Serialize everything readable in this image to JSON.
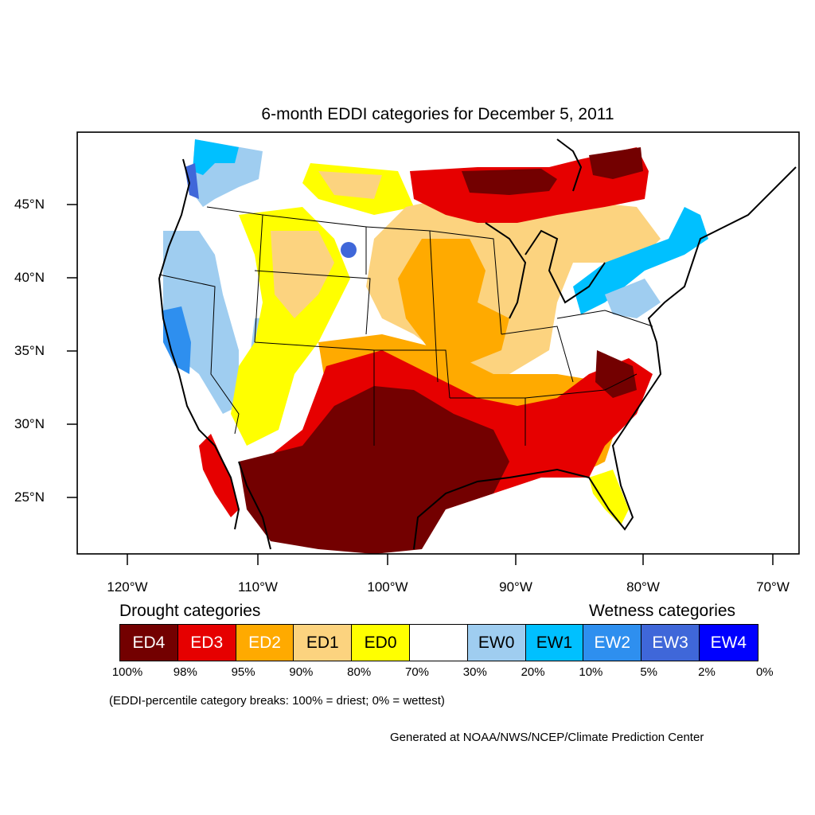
{
  "title": "6-month EDDI categories for December 5, 2011",
  "latitude_labels": [
    "45°N",
    "40°N",
    "35°N",
    "30°N",
    "25°N"
  ],
  "longitude_labels": [
    "120°W",
    "110°W",
    "100°W",
    "90°W",
    "80°W",
    "70°W"
  ],
  "drought_heading": "Drought categories",
  "wetness_heading": "Wetness categories",
  "legend": [
    {
      "label": "ED4",
      "color": "#730000",
      "text_color": "#ffffff"
    },
    {
      "label": "ED3",
      "color": "#e60000",
      "text_color": "#ffffff"
    },
    {
      "label": "ED2",
      "color": "#ffaa00",
      "text_color": "#ffffff"
    },
    {
      "label": "ED1",
      "color": "#fcd37f",
      "text_color": "#000000"
    },
    {
      "label": "ED0",
      "color": "#ffff00",
      "text_color": "#000000"
    },
    {
      "label": "",
      "color": "#ffffff",
      "text_color": "#000000"
    },
    {
      "label": "EW0",
      "color": "#9fcdf0",
      "text_color": "#000000"
    },
    {
      "label": "EW1",
      "color": "#00c0ff",
      "text_color": "#000000"
    },
    {
      "label": "EW2",
      "color": "#2e8fef",
      "text_color": "#ffffff"
    },
    {
      "label": "EW3",
      "color": "#3f67d9",
      "text_color": "#ffffff"
    },
    {
      "label": "EW4",
      "color": "#0000ff",
      "text_color": "#ffffff"
    }
  ],
  "percentile_breaks": [
    "100%",
    "98%",
    "95%",
    "90%",
    "80%",
    "70%",
    "30%",
    "20%",
    "10%",
    "5%",
    "2%",
    "0%"
  ],
  "note": "(EDDI-percentile category breaks: 100% = driest; 0% = wettest)",
  "credit": "Generated at NOAA/NWS/NCEP/Climate Prediction Center"
}
